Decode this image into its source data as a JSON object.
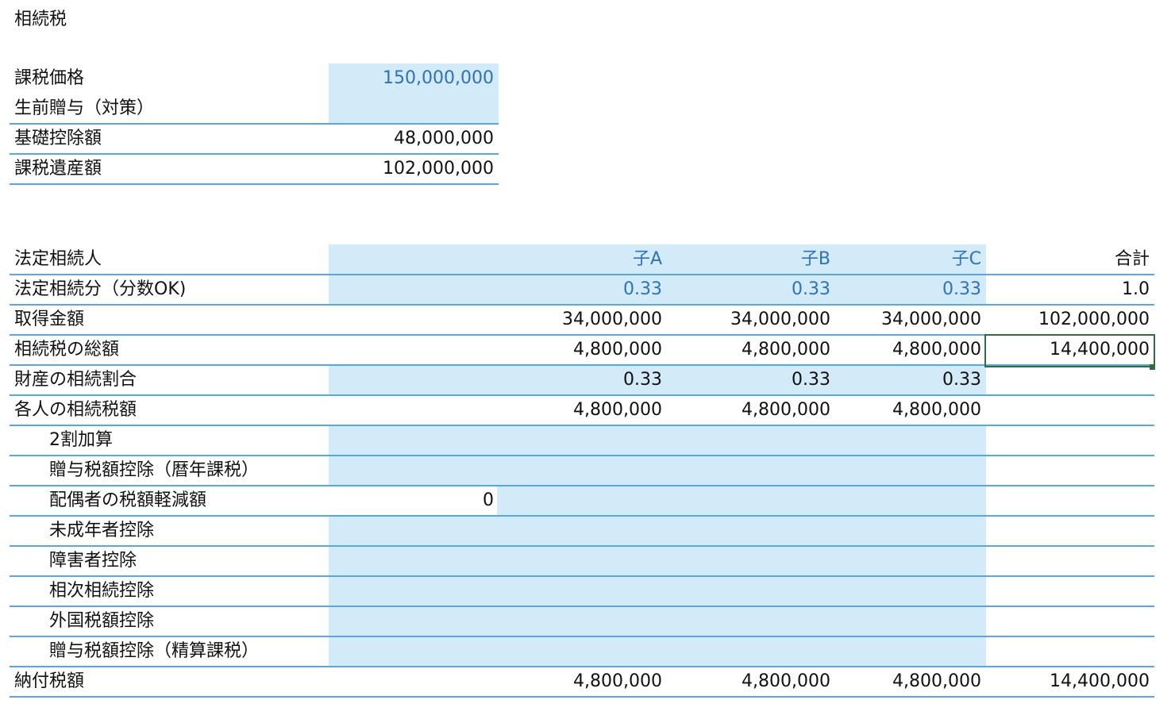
{
  "title": "相続税",
  "top": {
    "rows": [
      {
        "label": "課税価格",
        "value": "150,000,000"
      },
      {
        "label": "生前贈与（対策）",
        "value": ""
      },
      {
        "label": "基礎控除額",
        "value": "48,000,000"
      },
      {
        "label": "課税遺産額",
        "value": "102,000,000"
      }
    ]
  },
  "main": {
    "headers": {
      "label": "法定相続人",
      "col0": "",
      "a": "子A",
      "b": "子B",
      "c": "子C",
      "total": "合計"
    },
    "rows": [
      {
        "label": "法定相続分（分数OK)",
        "col0": "",
        "a": "0.33",
        "b": "0.33",
        "c": "0.33",
        "total": "1.0"
      },
      {
        "label": "取得金額",
        "col0": "",
        "a": "34,000,000",
        "b": "34,000,000",
        "c": "34,000,000",
        "total": "102,000,000"
      },
      {
        "label": "相続税の総額",
        "col0": "",
        "a": "4,800,000",
        "b": "4,800,000",
        "c": "4,800,000",
        "total": "14,400,000"
      },
      {
        "label": "財産の相続割合",
        "col0": "",
        "a": "0.33",
        "b": "0.33",
        "c": "0.33",
        "total": ""
      },
      {
        "label": "各人の相続税額",
        "col0": "",
        "a": "4,800,000",
        "b": "4,800,000",
        "c": "4,800,000",
        "total": ""
      },
      {
        "label": "2割加算",
        "col0": "",
        "a": "",
        "b": "",
        "c": "",
        "total": ""
      },
      {
        "label": "贈与税額控除（暦年課税）",
        "col0": "",
        "a": "",
        "b": "",
        "c": "",
        "total": ""
      },
      {
        "label": "配偶者の税額軽減額",
        "col0": "0",
        "a": "",
        "b": "",
        "c": "",
        "total": ""
      },
      {
        "label": "未成年者控除",
        "col0": "",
        "a": "",
        "b": "",
        "c": "",
        "total": ""
      },
      {
        "label": "障害者控除",
        "col0": "",
        "a": "",
        "b": "",
        "c": "",
        "total": ""
      },
      {
        "label": "相次相続控除",
        "col0": "",
        "a": "",
        "b": "",
        "c": "",
        "total": ""
      },
      {
        "label": "外国税額控除",
        "col0": "",
        "a": "",
        "b": "",
        "c": "",
        "total": ""
      },
      {
        "label": "贈与税額控除（精算課税）",
        "col0": "",
        "a": "",
        "b": "",
        "c": "",
        "total": ""
      },
      {
        "label": "納付税額",
        "col0": "",
        "a": "4,800,000",
        "b": "4,800,000",
        "c": "4,800,000",
        "total": "14,400,000"
      }
    ]
  },
  "colors": {
    "input_fill": "#d3eaf8",
    "input_text": "#2e72b8",
    "rule": "#5aa7df",
    "selection": "#2f6d3e"
  }
}
